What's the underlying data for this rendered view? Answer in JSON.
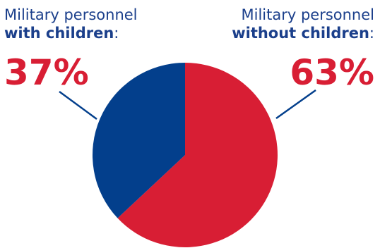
{
  "labels": {
    "left": {
      "line1": "Military personnel",
      "line2_bold": "with children",
      "line2_suffix": ":",
      "percent": "37%"
    },
    "right": {
      "line1": "Military personnel",
      "line2_bold": "without children",
      "line2_suffix": ":",
      "percent": "63%"
    }
  },
  "colors": {
    "with_children": "#033f8c",
    "without_children": "#d81e34",
    "text_blue": "#1b3f8b",
    "text_red": "#d81e34",
    "leader_line": "#033f8c"
  },
  "chart_data": {
    "type": "pie",
    "title": "",
    "slices": [
      {
        "label": "Military personnel with children",
        "value": 37,
        "color": "#033f8c"
      },
      {
        "label": "Military personnel without children",
        "value": 63,
        "color": "#d81e34"
      }
    ],
    "legend": "none",
    "grid": false
  }
}
